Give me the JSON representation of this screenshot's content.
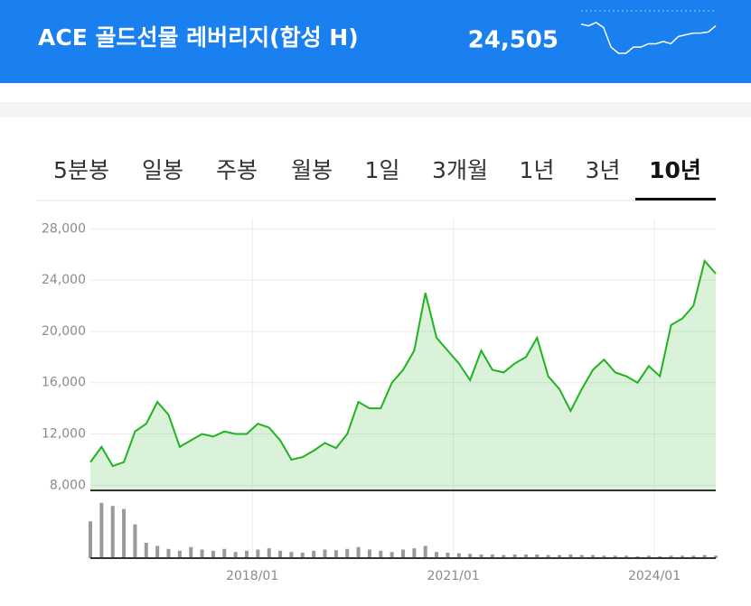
{
  "header": {
    "title": "ACE 골드선물 레버리지(합성 H)",
    "price": "24,505",
    "sparkline": {
      "values": [
        73,
        70,
        76,
        67,
        32,
        21,
        21,
        32,
        32,
        38,
        38,
        42,
        38,
        51,
        54,
        57,
        57,
        59,
        70
      ],
      "ylim": [
        0,
        100
      ],
      "color": "#ffffff"
    }
  },
  "tabs": {
    "items": [
      "5분봉",
      "일봉",
      "주봉",
      "월봉",
      "1일",
      "3개월",
      "1년",
      "3년",
      "10년"
    ],
    "selected": 8
  },
  "chart_data": {
    "type": "line",
    "x": [
      "2015/08",
      "2015/10",
      "2015/12",
      "2016/02",
      "2016/04",
      "2016/06",
      "2016/08",
      "2016/10",
      "2016/12",
      "2017/02",
      "2017/04",
      "2017/06",
      "2017/08",
      "2017/10",
      "2017/12",
      "2018/02",
      "2018/04",
      "2018/06",
      "2018/08",
      "2018/10",
      "2018/12",
      "2019/02",
      "2019/04",
      "2019/06",
      "2019/08",
      "2019/10",
      "2019/12",
      "2020/02",
      "2020/04",
      "2020/06",
      "2020/08",
      "2020/10",
      "2020/12",
      "2021/02",
      "2021/04",
      "2021/06",
      "2021/08",
      "2021/10",
      "2021/12",
      "2022/02",
      "2022/04",
      "2022/06",
      "2022/08",
      "2022/10",
      "2022/12",
      "2023/02",
      "2023/04",
      "2023/06",
      "2023/08",
      "2023/10",
      "2023/12",
      "2024/02",
      "2024/04",
      "2024/06",
      "2024/08",
      "2024/10",
      "2024/12"
    ],
    "series": [
      {
        "name": "price",
        "color": "#1fb41f",
        "values": [
          9800,
          11000,
          9500,
          9800,
          12200,
          12800,
          14500,
          13500,
          11000,
          11500,
          12000,
          11800,
          12200,
          12000,
          12000,
          12800,
          12500,
          11500,
          10000,
          10200,
          10700,
          11300,
          10900,
          12000,
          14500,
          14000,
          14000,
          16000,
          17000,
          18500,
          23000,
          19500,
          18500,
          17500,
          16200,
          18500,
          17000,
          16800,
          17500,
          18000,
          19500,
          16500,
          15500,
          13800,
          15500,
          17000,
          17800,
          16800,
          16500,
          16000,
          17300,
          16500,
          20500,
          21000,
          22000,
          25500,
          24505
        ]
      },
      {
        "name": "volume",
        "color": "#9a9a9a",
        "values": [
          60,
          90,
          85,
          80,
          55,
          25,
          20,
          15,
          12,
          18,
          14,
          12,
          15,
          10,
          12,
          14,
          16,
          12,
          10,
          9,
          12,
          14,
          13,
          15,
          18,
          14,
          12,
          10,
          14,
          16,
          20,
          10,
          9,
          8,
          7,
          6,
          6,
          5,
          6,
          6,
          6,
          5,
          5,
          6,
          5,
          5,
          4,
          4,
          4,
          3,
          4,
          3,
          4,
          4,
          4,
          5,
          4
        ],
        "ylim": [
          0,
          100
        ]
      }
    ],
    "xlim": [
      "2015/08",
      "2024/12"
    ],
    "xticks": [
      "2018/01",
      "2021/01",
      "2024/01"
    ],
    "ylim": [
      7600,
      28800
    ],
    "yticks": [
      {
        "value": 8000,
        "label": "8,000"
      },
      {
        "value": 12000,
        "label": "12,000"
      },
      {
        "value": 16000,
        "label": "16,000"
      },
      {
        "value": 20000,
        "label": "20,000"
      },
      {
        "value": 24000,
        "label": "24,000"
      },
      {
        "value": 28000,
        "label": "28,000"
      }
    ],
    "grid": true
  }
}
